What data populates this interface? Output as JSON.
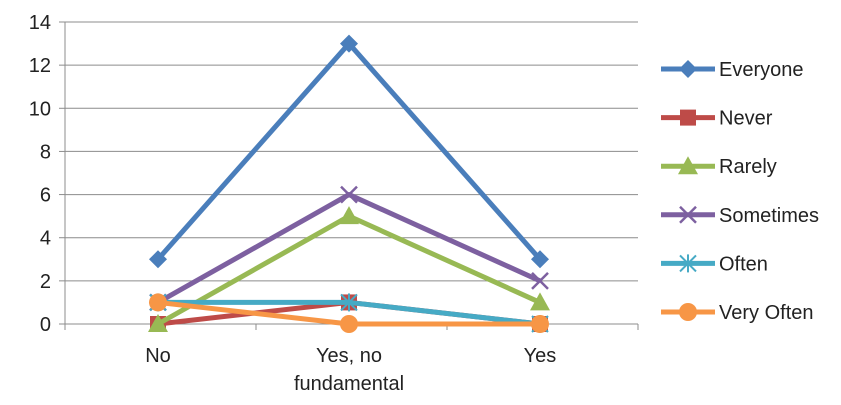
{
  "chart_data": {
    "type": "line",
    "categories": [
      "No",
      "Yes, no fundamental",
      "Yes"
    ],
    "category_lines": [
      [
        "No"
      ],
      [
        "Yes, no",
        "fundamental"
      ],
      [
        "Yes"
      ]
    ],
    "ylim": [
      0,
      14
    ],
    "yticks": [
      0,
      2,
      4,
      6,
      8,
      10,
      12,
      14
    ],
    "ytick_labels": [
      "0",
      "2",
      "4",
      "6",
      "8",
      "10",
      "12",
      "14"
    ],
    "grid": true,
    "legend_position": "right",
    "series": [
      {
        "name": "Everyone",
        "values": [
          3,
          13,
          3
        ],
        "color": "#4A7EBB",
        "marker": "diamond"
      },
      {
        "name": "Never",
        "values": [
          0,
          1,
          0
        ],
        "color": "#BE4B48",
        "marker": "square"
      },
      {
        "name": "Rarely",
        "values": [
          0,
          5,
          1
        ],
        "color": "#98B954",
        "marker": "triangle"
      },
      {
        "name": "Sometimes",
        "values": [
          1,
          6,
          2
        ],
        "color": "#7D60A0",
        "marker": "x"
      },
      {
        "name": "Often",
        "values": [
          1,
          1,
          0
        ],
        "color": "#46AAC5",
        "marker": "star"
      },
      {
        "name": "Very Often",
        "values": [
          1,
          0,
          0
        ],
        "color": "#F79646",
        "marker": "circle"
      }
    ]
  }
}
